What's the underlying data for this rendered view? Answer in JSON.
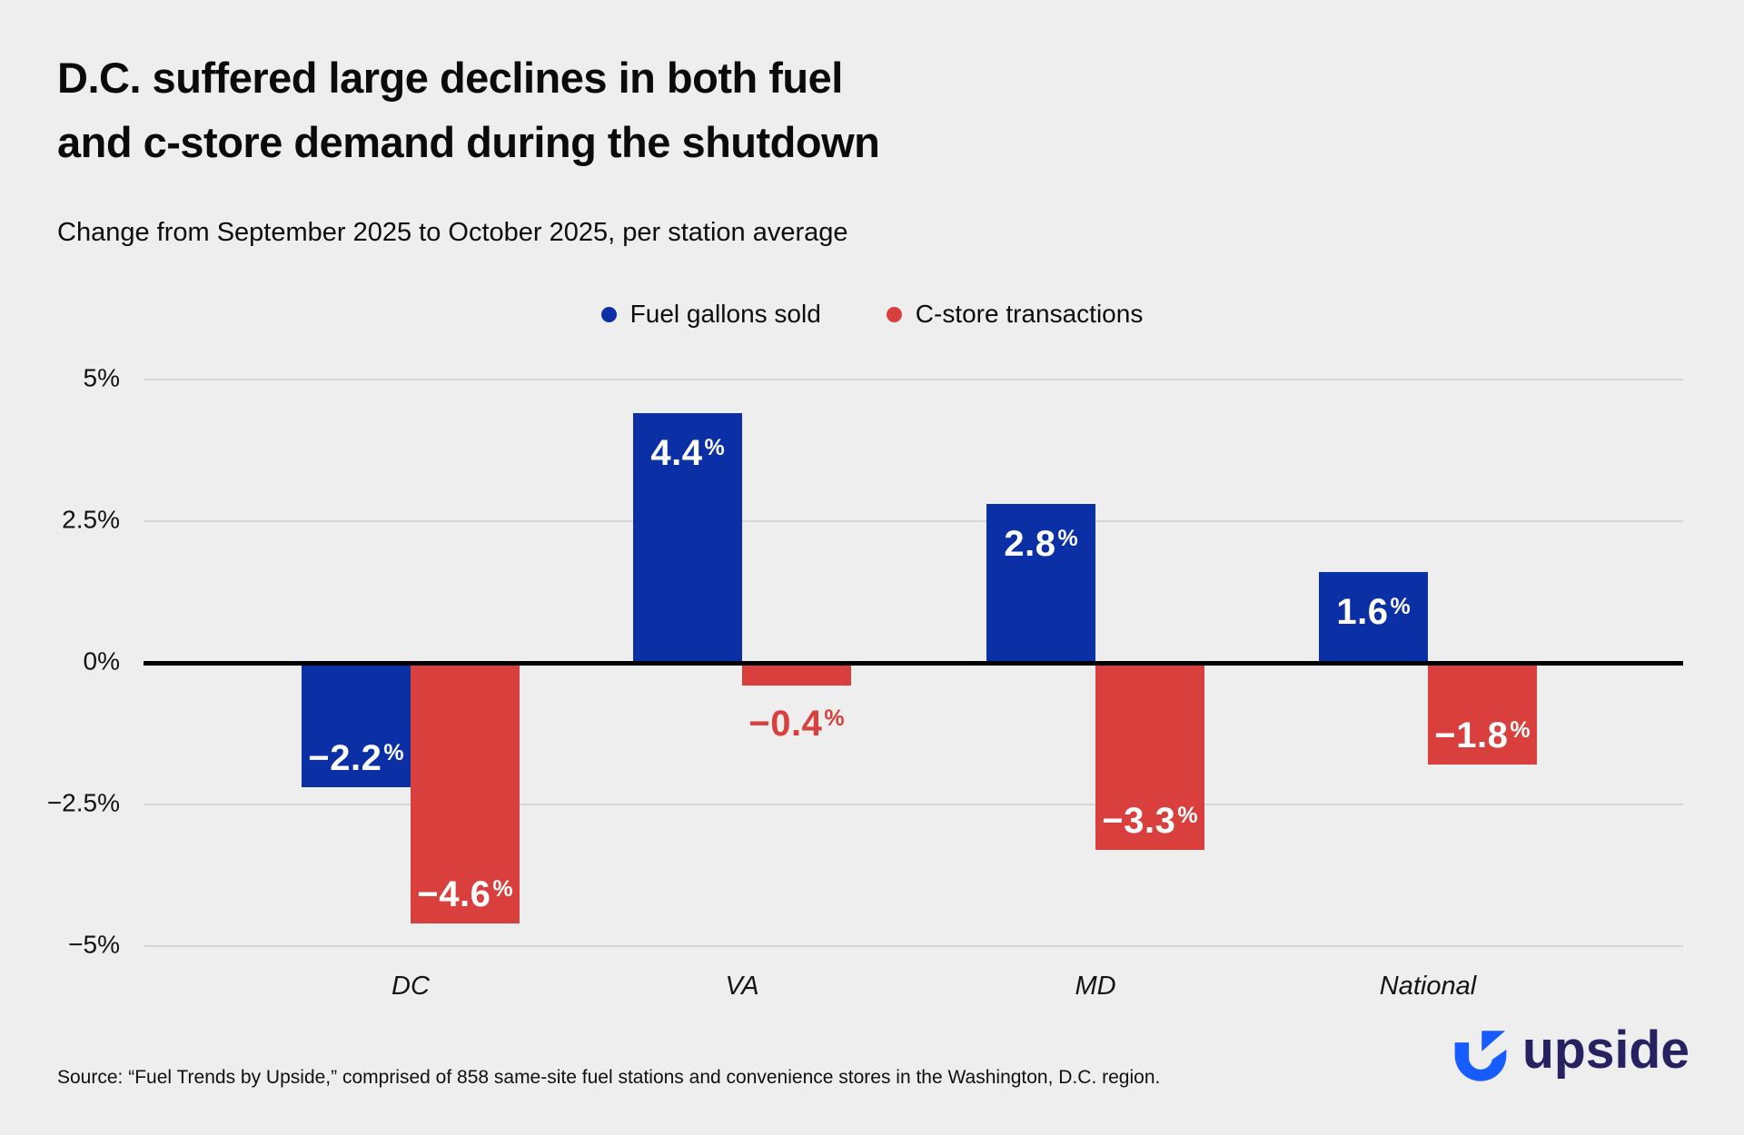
{
  "header": {
    "title_line1": "D.C. suffered large declines in both fuel",
    "title_line2": "and c-store demand during the shutdown",
    "subtitle": "Change from September 2025 to October 2025, per station average"
  },
  "chart_data": {
    "type": "bar",
    "categories": [
      "DC",
      "VA",
      "MD",
      "National"
    ],
    "series": [
      {
        "name": "Fuel gallons sold",
        "color": "#0B2FA5",
        "values": [
          -2.2,
          4.4,
          2.8,
          1.6
        ],
        "labels": [
          "−2.2",
          "4.4",
          "2.8",
          "1.6"
        ]
      },
      {
        "name": "C-store transactions",
        "color": "#D83F3D",
        "values": [
          -4.6,
          -0.4,
          -3.3,
          -1.8
        ],
        "labels": [
          "−4.6",
          "−0.4",
          "−3.3",
          "−1.8"
        ]
      }
    ],
    "percent_suffix": "%",
    "y_ticks": [
      {
        "label": "5%",
        "value": 5
      },
      {
        "label": "2.5%",
        "value": 2.5
      },
      {
        "label": "0%",
        "value": 0
      },
      {
        "label": "−2.5%",
        "value": -2.5
      },
      {
        "label": "−5%",
        "value": -5
      }
    ],
    "ylim": [
      -5,
      5
    ],
    "grid": true,
    "legend_position": "top-center"
  },
  "footer": {
    "source": "Source: “Fuel Trends by Upside,” comprised of 858 same-site fuel stations and convenience stores in the Washington, D.C. region.",
    "logo_text": "upside"
  },
  "colors": {
    "background": "#EEEEEE",
    "fuel_blue": "#0B2FA5",
    "cstore_red": "#D83F3D",
    "logo_mark_blue": "#175CFF",
    "logo_word_navy": "#262262",
    "gridline": "#D7D7D7",
    "zero_axis": "#000000"
  }
}
